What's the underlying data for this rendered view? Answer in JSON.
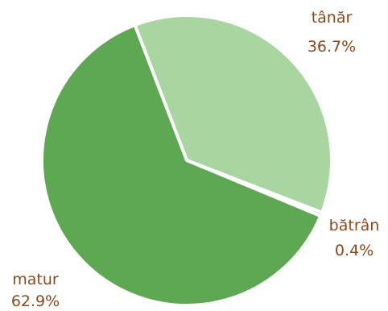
{
  "chart_data": {
    "type": "pie",
    "slices": [
      {
        "label": "tânăr",
        "value": 36.7,
        "value_label": "36.7%",
        "color": "#a8d5a0"
      },
      {
        "label": "bătrân",
        "value": 0.4,
        "value_label": "0.4%",
        "color": "#5fa853"
      },
      {
        "label": "matur",
        "value": 62.9,
        "value_label": "62.9%",
        "color": "#5fa853"
      }
    ],
    "label_color": "#8a4a1c"
  }
}
